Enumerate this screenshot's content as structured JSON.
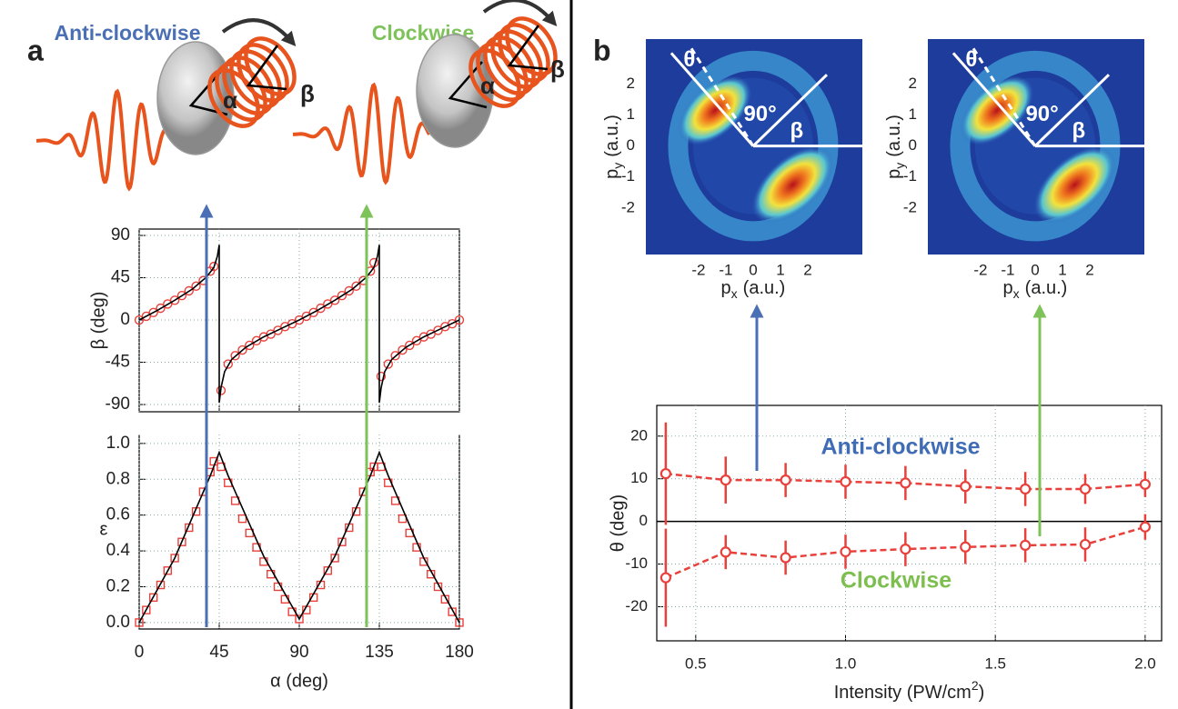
{
  "labels": {
    "panel_a": "a",
    "panel_b": "b"
  },
  "illustration": {
    "left": {
      "title": "Anti-clockwise",
      "alpha": "α",
      "beta": "β"
    },
    "right": {
      "title": "Clockwise",
      "alpha": "α",
      "beta": "β"
    }
  },
  "chart_data": [
    {
      "type": "line",
      "ylabel": "β (deg)",
      "xlim": [
        0,
        180
      ],
      "xticks": [
        0,
        45,
        90,
        135,
        180
      ],
      "xtick_labels": false,
      "ylim": [
        -97.7,
        96.8
      ],
      "yticks": [
        -90,
        -45,
        0,
        45,
        90
      ],
      "grid": true,
      "series": [
        {
          "marker": "circle",
          "color": "#e8413c",
          "x": [
            0,
            4,
            8,
            12,
            16,
            20,
            24,
            28,
            32,
            36,
            40,
            42,
            46,
            50,
            54,
            58,
            62,
            66,
            70,
            74,
            78,
            82,
            86,
            90,
            94,
            98,
            102,
            106,
            110,
            114,
            118,
            122,
            126,
            130,
            132,
            136,
            140,
            144,
            148,
            152,
            156,
            160,
            164,
            168,
            172,
            176,
            180
          ],
          "values": [
            0,
            4,
            8,
            12.5,
            17,
            21,
            26,
            31,
            36,
            42,
            52,
            57,
            -75,
            -47,
            -38,
            -32,
            -27,
            -22,
            -18,
            -15,
            -11,
            -7,
            -4,
            0,
            4,
            8,
            12.5,
            17,
            21,
            26,
            31,
            36,
            42,
            52,
            61,
            -60,
            -47,
            -38,
            -32,
            -27,
            -22,
            -18,
            -15,
            -11,
            -7,
            -4,
            0
          ]
        },
        {
          "marker": "none",
          "color": "#000000",
          "x": [
            0,
            10,
            20,
            30,
            38,
            42,
            44,
            45,
            45,
            46,
            48,
            52,
            60,
            70,
            80,
            90,
            100,
            110,
            120,
            128,
            132,
            134,
            135,
            135,
            136,
            138,
            142,
            150,
            160,
            170,
            180
          ],
          "values": [
            0,
            10,
            21,
            33,
            46,
            56,
            68,
            80,
            -88,
            -72,
            -55,
            -42,
            -29,
            -18,
            -9,
            0,
            10,
            21,
            33,
            46,
            56,
            68,
            80,
            -88,
            -72,
            -55,
            -42,
            -29,
            -18,
            -9,
            0
          ]
        }
      ]
    },
    {
      "type": "line",
      "ylabel": "ε",
      "xlabel": "α (deg)",
      "xlim": [
        0,
        180
      ],
      "xticks": [
        0,
        45,
        90,
        135,
        180
      ],
      "ylim": [
        -0.036,
        1.05
      ],
      "yticks": [
        {
          "value": 0,
          "label": "0.0"
        },
        0.2,
        0.4,
        0.6,
        0.8,
        {
          "value": 1,
          "label": "1.0"
        }
      ],
      "grid": true,
      "series": [
        {
          "marker": "square",
          "color": "#e8413c",
          "x": [
            0,
            4,
            8,
            12,
            16,
            20,
            24,
            28,
            32,
            36,
            40,
            42,
            46,
            50,
            54,
            58,
            62,
            66,
            70,
            74,
            78,
            82,
            86,
            90,
            94,
            98,
            102,
            106,
            110,
            114,
            118,
            122,
            126,
            130,
            132,
            136,
            140,
            144,
            148,
            152,
            156,
            160,
            164,
            168,
            172,
            176,
            180
          ],
          "values": [
            0,
            0.07,
            0.14,
            0.21,
            0.29,
            0.36,
            0.45,
            0.53,
            0.62,
            0.73,
            0.84,
            0.9,
            0.87,
            0.78,
            0.68,
            0.58,
            0.5,
            0.42,
            0.34,
            0.27,
            0.2,
            0.13,
            0.06,
            0.02,
            0.07,
            0.14,
            0.21,
            0.29,
            0.36,
            0.45,
            0.53,
            0.62,
            0.73,
            0.84,
            0.87,
            0.87,
            0.78,
            0.68,
            0.58,
            0.5,
            0.42,
            0.34,
            0.27,
            0.2,
            0.13,
            0.06,
            0
          ]
        },
        {
          "marker": "none",
          "color": "#000000",
          "x": [
            0,
            20,
            40,
            45,
            50,
            70,
            90,
            110,
            130,
            135,
            140,
            160,
            180
          ],
          "values": [
            0,
            0.36,
            0.82,
            0.95,
            0.82,
            0.37,
            0.02,
            0.37,
            0.82,
            0.95,
            0.82,
            0.36,
            0
          ]
        }
      ]
    },
    {
      "type": "heatmap",
      "xlabel": [
        "p",
        "x",
        "(a.u.)"
      ],
      "ylabel": [
        "p",
        "y",
        "(a.u.)"
      ],
      "xlim": [
        -3.93,
        4.0
      ],
      "xticks": [
        -2,
        -1,
        0,
        1,
        2
      ],
      "ylim": [
        -3.5,
        3.45
      ],
      "yticks": [
        -2,
        -1,
        0,
        1,
        2
      ],
      "annotations": [
        "θ",
        "90°",
        "β"
      ]
    },
    {
      "type": "heatmap",
      "xlabel": [
        "p",
        "x",
        "(a.u.)"
      ],
      "ylabel": [
        "p",
        "y",
        "(a.u.)"
      ],
      "xlim": [
        -3.93,
        4.0
      ],
      "xticks": [
        -2,
        -1,
        0,
        1,
        2
      ],
      "ylim": [
        -3.5,
        3.45
      ],
      "yticks": [
        -2,
        -1,
        0,
        1,
        2
      ],
      "annotations": [
        "θ",
        "90°",
        "β"
      ]
    },
    {
      "type": "errorbar",
      "ylabel": "θ (deg)",
      "xlabel": [
        "Intensity (PW/cm",
        "2",
        ")"
      ],
      "xlim": [
        0.37,
        2.055
      ],
      "xticks": [
        0.5,
        {
          "value": 1,
          "label": "1.0"
        },
        1.5,
        {
          "value": 2,
          "label": "2.0"
        }
      ],
      "ylim": [
        -28,
        27.2
      ],
      "yticks": [
        -20,
        -10,
        0,
        10,
        20
      ],
      "grid": true,
      "x": [
        0.4,
        0.6,
        0.8,
        1,
        1.2,
        1.4,
        1.6,
        1.8,
        2
      ],
      "series": [
        {
          "color": "#e8413c",
          "values": [
            11.2,
            9.7,
            9.7,
            9.3,
            9.0,
            8.2,
            7.6,
            7.6,
            8.7
          ],
          "errors": [
            12,
            5.5,
            4,
            4,
            4,
            4,
            4,
            3.5,
            3
          ]
        },
        {
          "color": "#e8413c",
          "values": [
            -13.2,
            -7.2,
            -8.5,
            -7.1,
            -6.5,
            -6.0,
            -5.6,
            -5.4,
            -1.3
          ],
          "errors": [
            11.5,
            4,
            4,
            4,
            4,
            4,
            4,
            4,
            3
          ]
        }
      ],
      "annotations": [
        {
          "text": "Anti-clockwise",
          "color": "#3f6cb4"
        },
        {
          "text": "Clockwise",
          "color": "#7dbf4f"
        }
      ]
    }
  ]
}
